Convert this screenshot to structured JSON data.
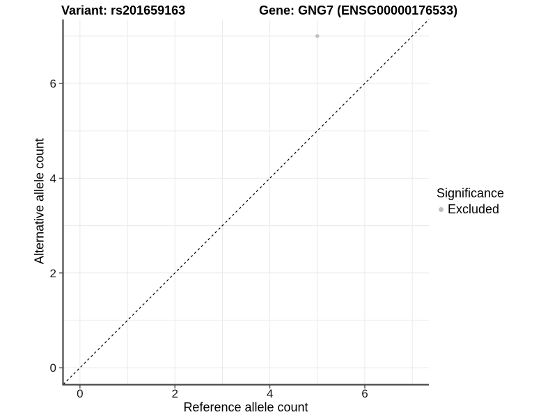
{
  "chart_data": {
    "type": "scatter",
    "titles": {
      "left": "Variant: rs201659163",
      "right": "Gene: GNG7 (ENSG00000176533)"
    },
    "xlabel": "Reference allele count",
    "ylabel": "Alternative allele count",
    "xlim": [
      -0.35,
      7.35
    ],
    "ylim": [
      -0.35,
      7.35
    ],
    "xticks": [
      0,
      2,
      4,
      6
    ],
    "yticks": [
      0,
      2,
      4,
      6
    ],
    "gridlines_x": [
      0,
      1,
      2,
      3,
      4,
      5,
      6,
      7
    ],
    "gridlines_y": [
      0,
      1,
      2,
      3,
      4,
      5,
      6,
      7
    ],
    "grid": true,
    "points": [
      {
        "x": 5,
        "y": 7,
        "series": "Excluded"
      }
    ],
    "identity_line": {
      "slope": 1,
      "intercept": 0,
      "style": "dashed"
    },
    "legend": {
      "title": "Significance",
      "position": "right",
      "items": [
        {
          "label": "Excluded",
          "color": "#bebebe"
        }
      ]
    },
    "colors": {
      "point": "#bebebe",
      "grid": "#e9e9e9",
      "axis_line": "#474747",
      "tick_mark": "#333333",
      "tick_text": "#1a1a1a",
      "identity_line": "#000000",
      "background": "#ffffff"
    }
  }
}
